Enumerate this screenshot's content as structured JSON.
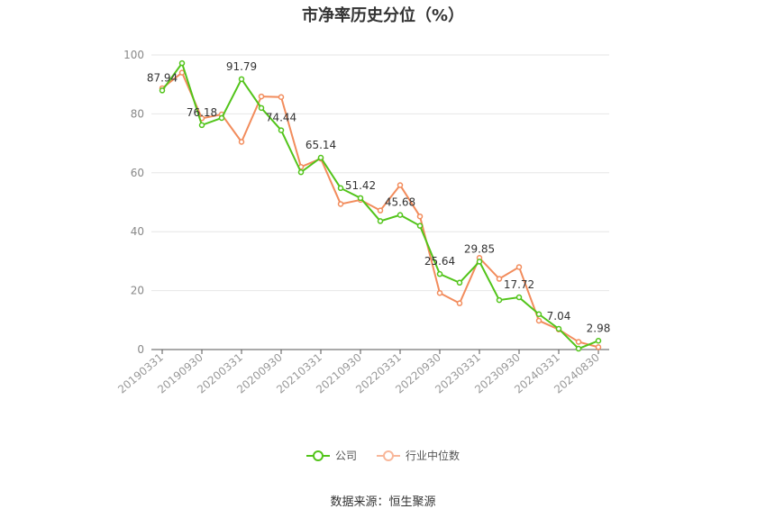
{
  "chart_data": {
    "type": "line",
    "title": "市净率历史分位（%）",
    "ylim": [
      0,
      100
    ],
    "y_ticks": [
      0,
      20,
      40,
      60,
      80,
      100
    ],
    "grid": true,
    "legend_position": "bottom",
    "x_tick_labels": [
      "20190331",
      "20190930",
      "20200331",
      "20200930",
      "20210331",
      "20210930",
      "20220331",
      "20220930",
      "20230331",
      "20230930",
      "20240331",
      "20240830"
    ],
    "x": [
      "20190331",
      "20190630",
      "20190930",
      "20191231",
      "20200331",
      "20200630",
      "20200930",
      "20201231",
      "20210331",
      "20210630",
      "20210930",
      "20211231",
      "20220331",
      "20220630",
      "20220930",
      "20221231",
      "20230331",
      "20230630",
      "20230930",
      "20231231",
      "20240331",
      "20240630",
      "20240830"
    ],
    "series": [
      {
        "name": "公司",
        "color": "#52c41a",
        "values": [
          87.94,
          97.2,
          76.18,
          78.6,
          91.79,
          82.0,
          74.44,
          60.2,
          65.14,
          54.8,
          51.42,
          43.6,
          45.68,
          42.0,
          25.64,
          22.7,
          29.85,
          16.8,
          17.72,
          12.0,
          7.04,
          0.3,
          2.98
        ],
        "labels": {
          "0": "87.94",
          "2": "76.18",
          "4": "91.79",
          "6": "74.44",
          "8": "65.14",
          "10": "51.42",
          "12": "45.68",
          "14": "25.64",
          "16": "29.85",
          "18": "17.72",
          "20": "7.04",
          "22": "2.98"
        }
      },
      {
        "name": "行业中位数",
        "color": "#f28c5c",
        "values": [
          88.7,
          94.0,
          78.5,
          79.8,
          70.5,
          85.9,
          85.7,
          62.0,
          64.8,
          49.4,
          50.8,
          47.2,
          55.8,
          45.2,
          19.2,
          15.7,
          31.1,
          24.0,
          28.0,
          9.8,
          6.8,
          2.6,
          0.8
        ]
      }
    ]
  },
  "source": "数据来源：恒生聚源"
}
